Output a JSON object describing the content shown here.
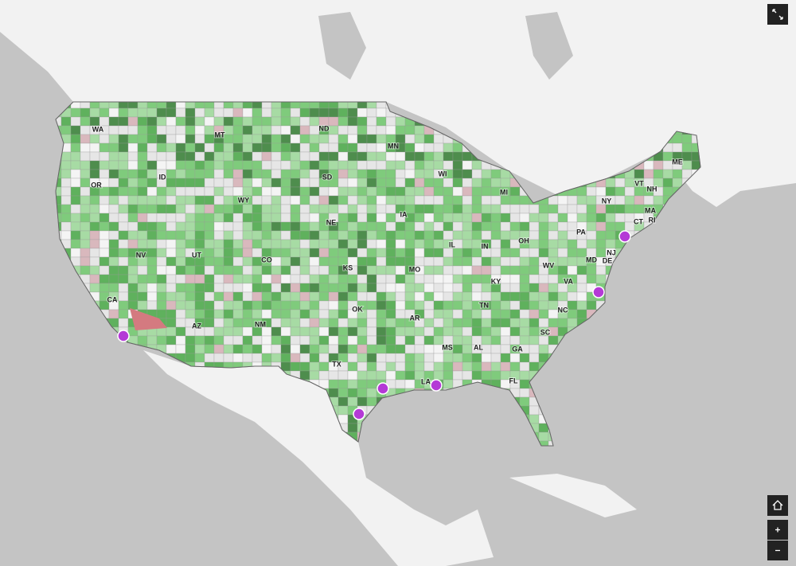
{
  "states": [
    "WA",
    "MT",
    "ND",
    "MN",
    "OR",
    "ID",
    "WY",
    "SD",
    "WI",
    "MI",
    "NE",
    "IA",
    "NV",
    "UT",
    "CO",
    "KS",
    "MO",
    "IL",
    "IN",
    "OH",
    "PA",
    "NY",
    "VT",
    "NH",
    "ME",
    "MA",
    "CT",
    "RI",
    "NJ",
    "MD",
    "DE",
    "WV",
    "VA",
    "KY",
    "CA",
    "AZ",
    "NM",
    "OK",
    "AR",
    "TN",
    "NC",
    "SC",
    "MS",
    "AL",
    "GA",
    "TX",
    "LA",
    "FL"
  ]
}
